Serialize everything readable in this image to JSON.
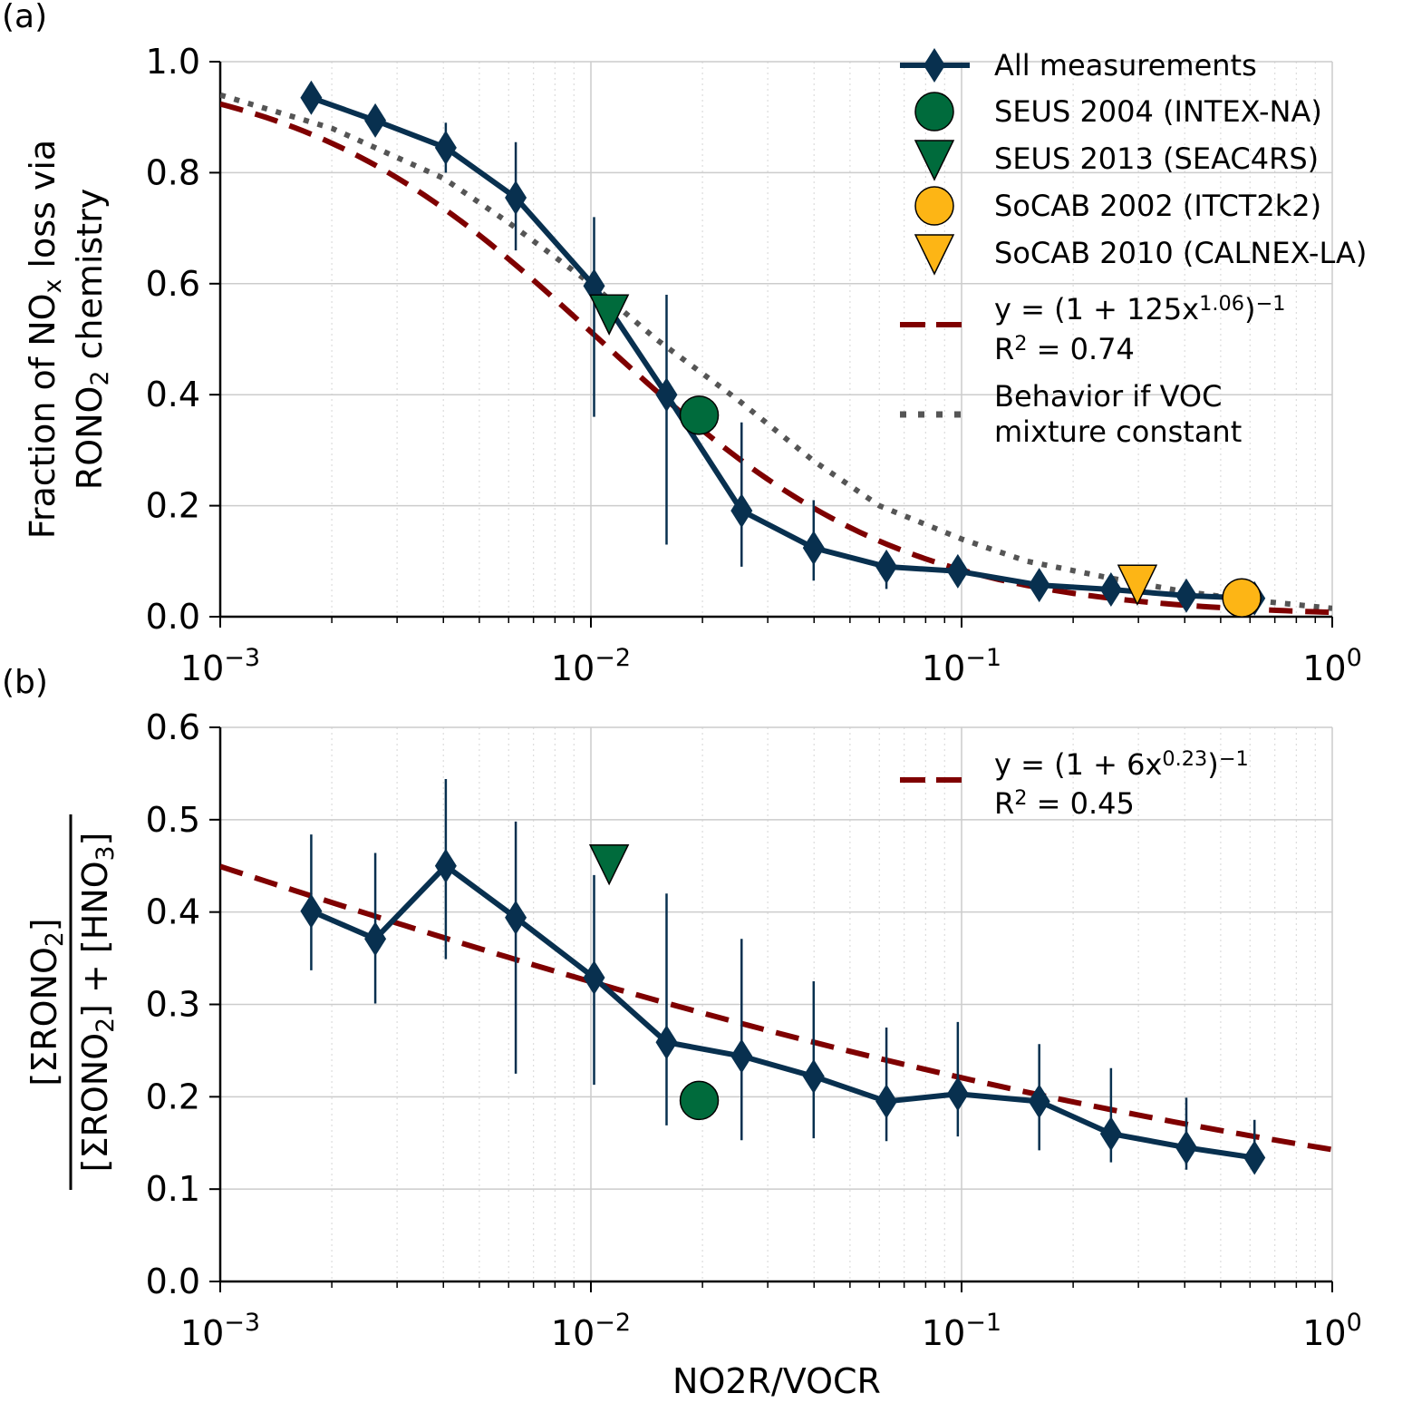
{
  "colors": {
    "measurements": "#08304f",
    "seus": "#006b3c",
    "socab": "#fdb515",
    "fit": "#7f0000",
    "voc": "#555555",
    "grid": "#cccccc"
  },
  "xlabel": "NO2R/VOCR",
  "chart_data": [
    {
      "panel_label": "(a)",
      "type": "line",
      "xscale": "log",
      "xlim": [
        0.001,
        1
      ],
      "ylim": [
        0,
        1.0
      ],
      "yticks": [
        "0.0",
        "0.2",
        "0.4",
        "0.6",
        "0.8",
        "1.0"
      ],
      "xticks": [
        {
          "base": "10",
          "exp": "−3"
        },
        {
          "base": "10",
          "exp": "−2"
        },
        {
          "base": "10",
          "exp": "−1"
        },
        {
          "base": "10",
          "exp": "0"
        }
      ],
      "ylabel_lines": [
        "Fraction of NO_{x} loss via",
        "RONO_{2} chemistry"
      ],
      "grid": true,
      "legend_placement": "top-right",
      "measurements": {
        "name": "All measurements",
        "x": [
          0.00176,
          0.00262,
          0.00406,
          0.00627,
          0.0102,
          0.016,
          0.0255,
          0.0399,
          0.0627,
          0.0977,
          0.162,
          0.253,
          0.404,
          0.617
        ],
        "y": [
          0.935,
          0.894,
          0.845,
          0.755,
          0.596,
          0.4,
          0.191,
          0.124,
          0.09,
          0.082,
          0.057,
          0.049,
          0.038,
          0.033
        ],
        "err_low": [
          0.92,
          0.87,
          0.8,
          0.66,
          0.36,
          0.13,
          0.09,
          0.065,
          0.05,
          0.065,
          0.045,
          0.04,
          0.03,
          0.025
        ],
        "err_high": [
          0.95,
          0.92,
          0.89,
          0.855,
          0.72,
          0.58,
          0.35,
          0.21,
          0.11,
          0.1,
          0.07,
          0.06,
          0.05,
          0.045
        ]
      },
      "campaigns": [
        {
          "name": "SEUS 2004 (INTEX-NA)",
          "marker": "circle",
          "color": "seus",
          "x": 0.0196,
          "y": 0.363
        },
        {
          "name": "SEUS 2013 (SEAC4RS)",
          "marker": "triangle-down",
          "color": "seus",
          "x": 0.0112,
          "y": 0.547
        },
        {
          "name": "SoCAB 2002 (ITCT2k2)",
          "marker": "circle",
          "color": "socab",
          "x": 0.57,
          "y": 0.034
        },
        {
          "name": "SoCAB 2010 (CALNEX-LA)",
          "marker": "triangle-down",
          "color": "socab",
          "x": 0.298,
          "y": 0.06
        }
      ],
      "fit": {
        "a": 125,
        "n": 1.06,
        "label": "y = (1 + 125x^{1.06})^{−1}",
        "r2_label": "R^{2} = 0.74"
      },
      "voc_constant": {
        "label_lines": [
          "Behavior if VOC",
          "mixture constant"
        ],
        "x": [
          0.001,
          0.002,
          0.004,
          0.006,
          0.01,
          0.015,
          0.025,
          0.04,
          0.06,
          0.1,
          0.15,
          0.25,
          0.4,
          0.6,
          1.0
        ],
        "y": [
          0.94,
          0.88,
          0.79,
          0.71,
          0.6,
          0.5,
          0.39,
          0.28,
          0.2,
          0.14,
          0.1,
          0.07,
          0.045,
          0.03,
          0.015
        ]
      }
    },
    {
      "panel_label": "(b)",
      "type": "line",
      "xscale": "log",
      "xlim": [
        0.001,
        1
      ],
      "ylim": [
        0,
        0.6
      ],
      "yticks": [
        "0.0",
        "0.1",
        "0.2",
        "0.3",
        "0.4",
        "0.5",
        "0.6"
      ],
      "xticks": [
        {
          "base": "10",
          "exp": "−3"
        },
        {
          "base": "10",
          "exp": "−2"
        },
        {
          "base": "10",
          "exp": "−1"
        },
        {
          "base": "10",
          "exp": "0"
        }
      ],
      "ylabel_numerator": "[ΣRONO_{2}]",
      "ylabel_denominator": "[ΣRONO_{2}] + [HNO_{3}]",
      "grid": true,
      "legend_placement": "top-right",
      "measurements": {
        "x": [
          0.00176,
          0.00262,
          0.00406,
          0.00627,
          0.0102,
          0.016,
          0.0255,
          0.0399,
          0.0627,
          0.0977,
          0.162,
          0.253,
          0.404,
          0.617
        ],
        "y": [
          0.401,
          0.371,
          0.45,
          0.394,
          0.329,
          0.259,
          0.244,
          0.222,
          0.195,
          0.203,
          0.195,
          0.16,
          0.145,
          0.134
        ],
        "err_low": [
          0.337,
          0.301,
          0.349,
          0.225,
          0.213,
          0.169,
          0.153,
          0.155,
          0.152,
          0.157,
          0.142,
          0.129,
          0.121,
          0.118
        ],
        "err_high": [
          0.484,
          0.464,
          0.544,
          0.498,
          0.44,
          0.42,
          0.371,
          0.325,
          0.275,
          0.281,
          0.257,
          0.231,
          0.199,
          0.175
        ]
      },
      "campaigns": [
        {
          "name": "SEUS 2004 (INTEX-NA)",
          "marker": "circle",
          "color": "seus",
          "x": 0.0196,
          "y": 0.196
        },
        {
          "name": "SEUS 2013 (SEAC4RS)",
          "marker": "triangle-down",
          "color": "seus",
          "x": 0.0112,
          "y": 0.453
        }
      ],
      "fit": {
        "a": 6,
        "n": 0.23,
        "label": "y = (1 + 6x^{0.23})^{−1}",
        "r2_label": "R^{2} = 0.45"
      }
    }
  ]
}
